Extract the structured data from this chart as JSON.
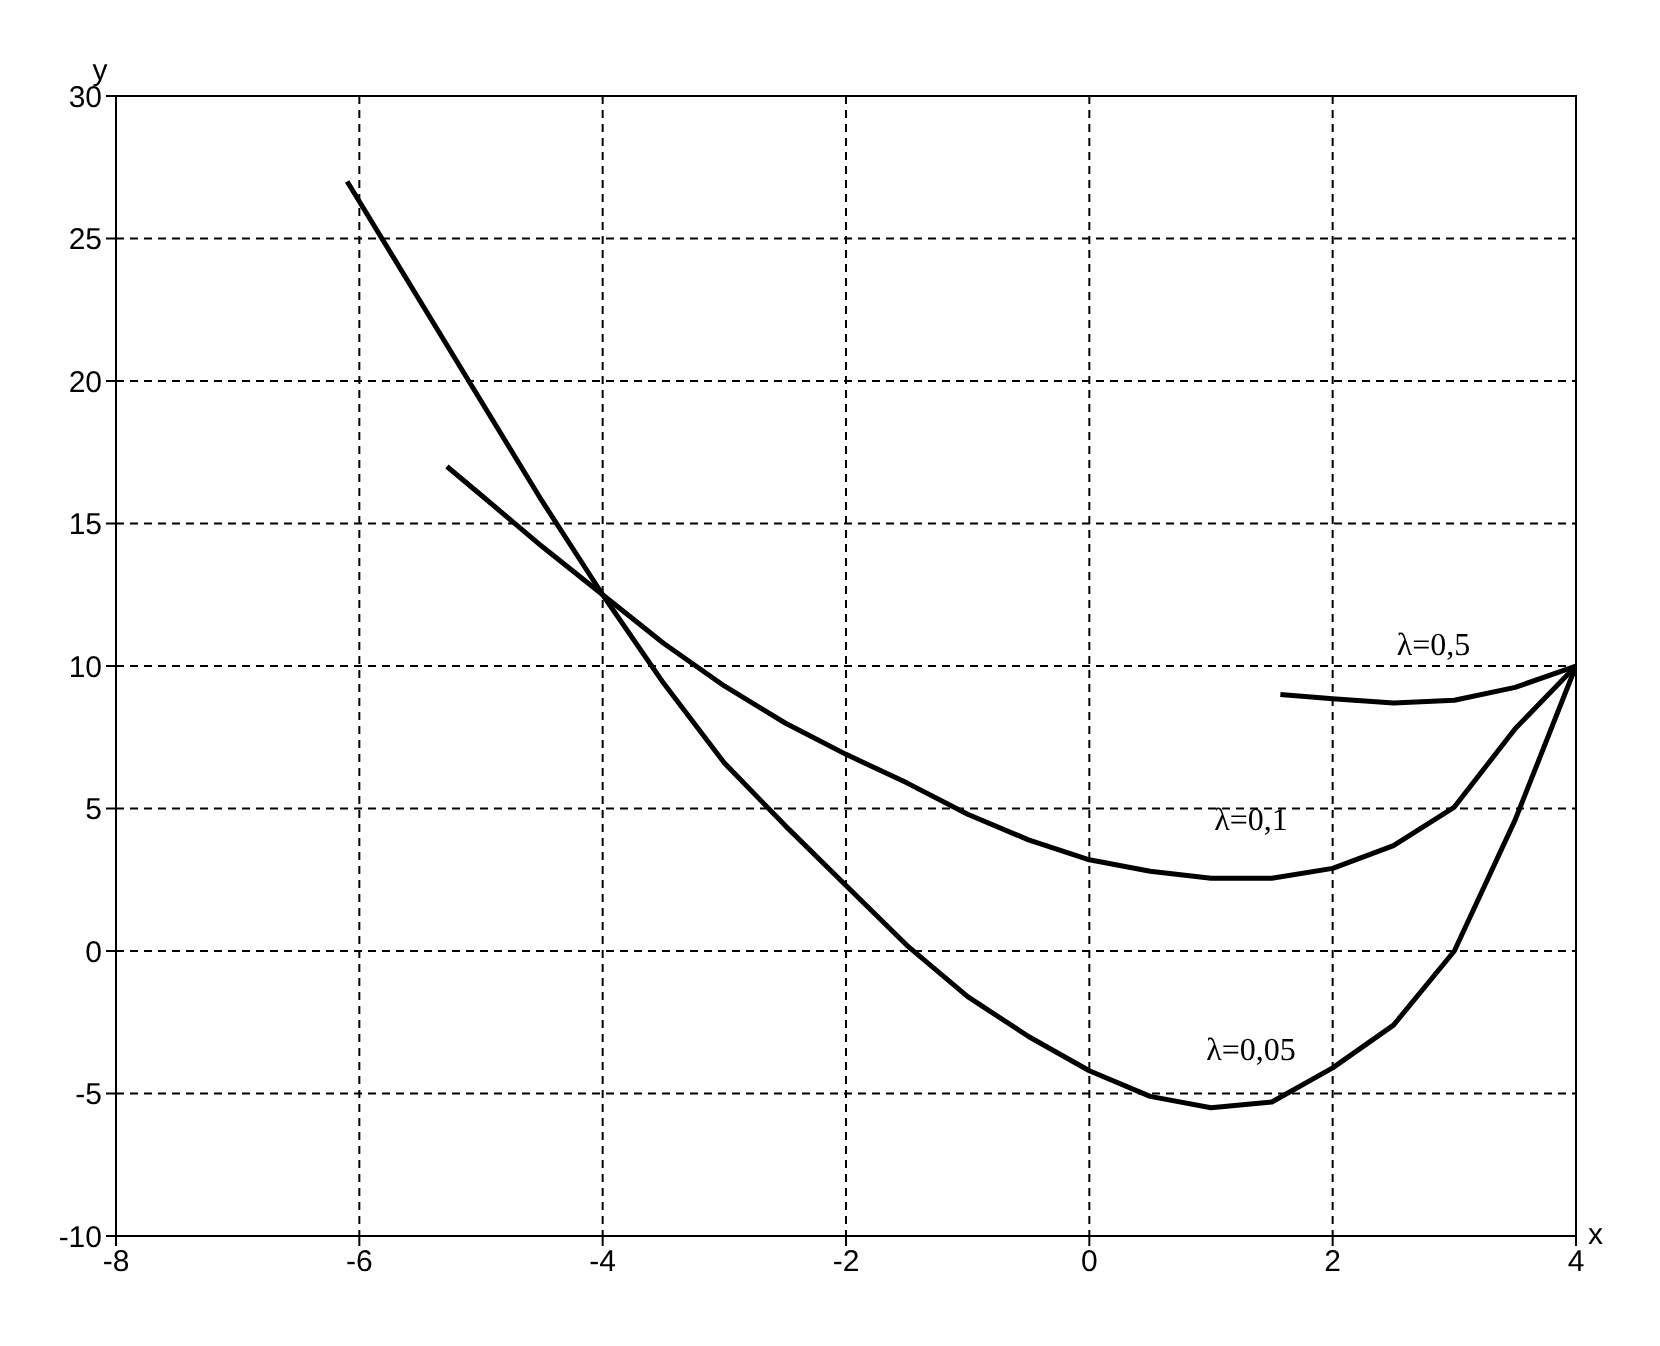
{
  "chart_data": {
    "type": "line",
    "xlabel": "x",
    "ylabel": "y",
    "xlim": [
      -8,
      4
    ],
    "xticks": [
      -8,
      -6,
      -4,
      -2,
      0,
      2,
      4
    ],
    "ylim": [
      -10,
      30
    ],
    "yticks": [
      -10,
      -5,
      0,
      5,
      10,
      15,
      20,
      25,
      30
    ],
    "grid": true,
    "marker": "none",
    "line_style": "solid",
    "series": [
      {
        "name": "λ=0,05",
        "color": "#000000",
        "x": [
          -6.1,
          -5.5,
          -5,
          -4.5,
          -4,
          -3.5,
          -3,
          -2.5,
          -2,
          -1.5,
          -1,
          -0.5,
          0,
          0.5,
          1,
          1.5,
          2,
          2.5,
          3,
          3.5,
          4
        ],
        "values": [
          27,
          22.8,
          19.3,
          15.8,
          12.5,
          9.4,
          6.6,
          4.4,
          2.3,
          0.2,
          -1.6,
          -3.0,
          -4.2,
          -5.1,
          -5.5,
          -5.3,
          -4.1,
          -2.6,
          0,
          4.6,
          10
        ]
      },
      {
        "name": "λ=0,1",
        "color": "#000000",
        "x": [
          -5.28,
          -5,
          -4.5,
          -4,
          -3.5,
          -3,
          -2.5,
          -2,
          -1.5,
          -1,
          -0.5,
          0,
          0.5,
          1,
          1.5,
          2,
          2.5,
          3,
          3.5,
          4
        ],
        "values": [
          17,
          16,
          14.2,
          12.5,
          10.8,
          9.3,
          8.0,
          6.9,
          5.9,
          4.8,
          3.9,
          3.2,
          2.8,
          2.55,
          2.55,
          2.9,
          3.7,
          5.05,
          7.8,
          10
        ]
      },
      {
        "name": "λ=0,5",
        "color": "#000000",
        "x": [
          1.57,
          2,
          2.5,
          3,
          3.5,
          4
        ],
        "values": [
          9.0,
          8.85,
          8.7,
          8.8,
          9.25,
          10
        ]
      }
    ]
  }
}
